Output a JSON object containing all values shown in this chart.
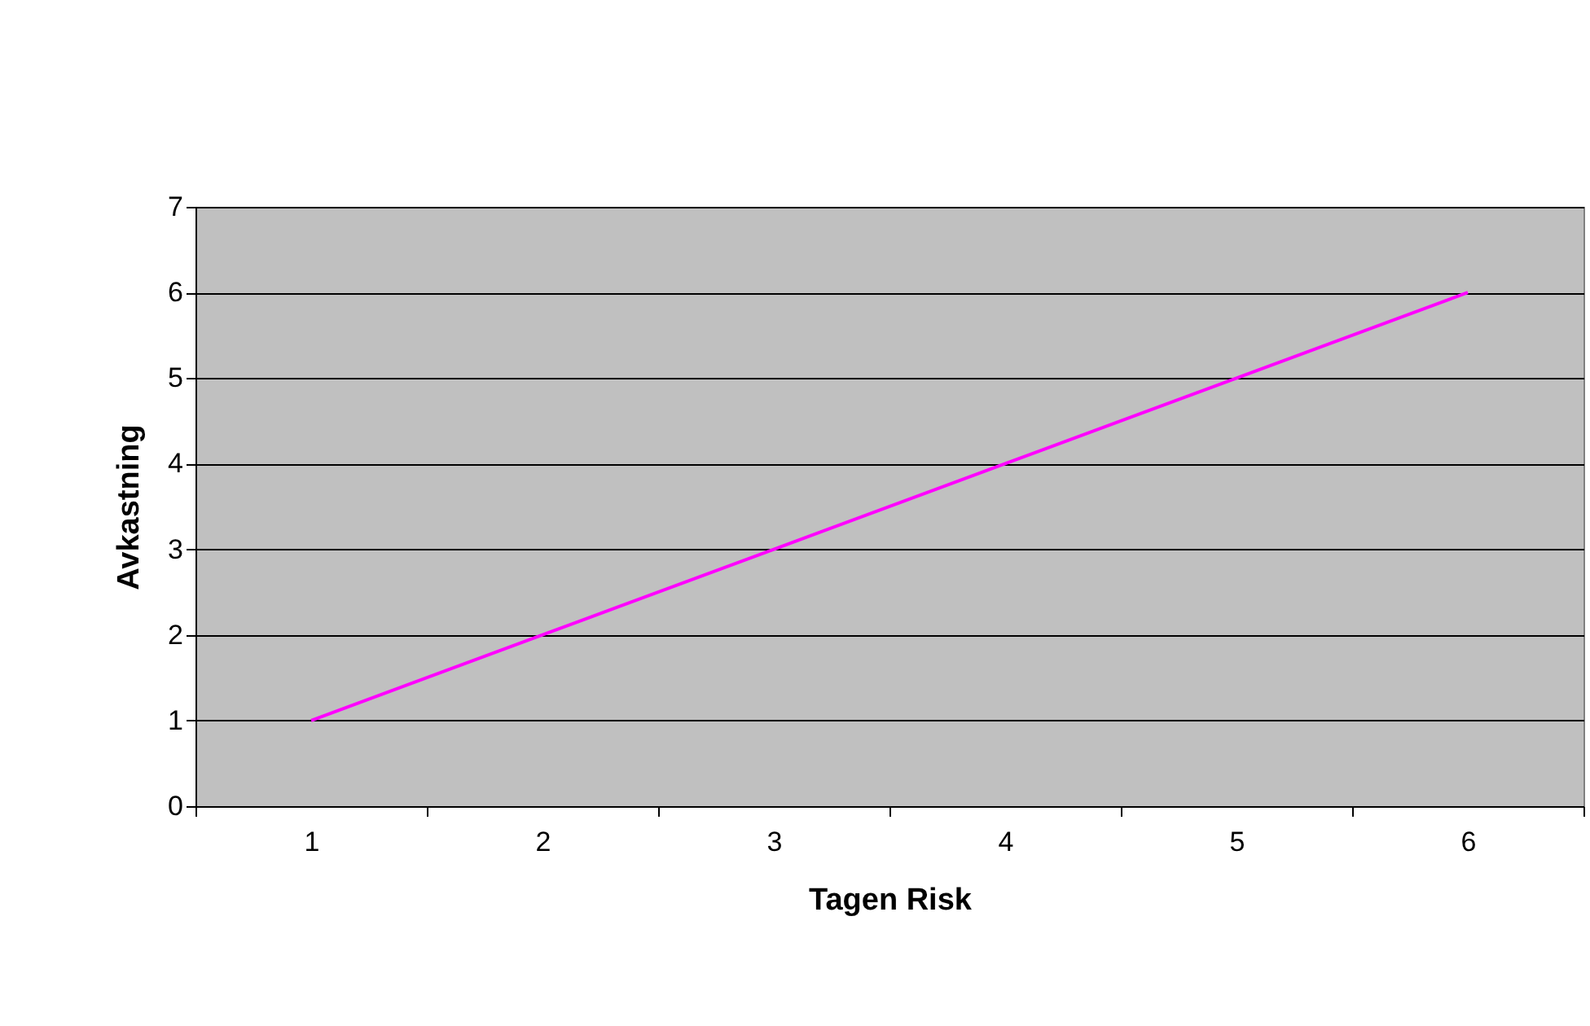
{
  "chart_data": {
    "type": "line",
    "xlabel": "Tagen Risk",
    "ylabel": "Avkastning",
    "categories": [
      "1",
      "2",
      "3",
      "4",
      "5",
      "6"
    ],
    "series": [
      {
        "color": "#ff00ff",
        "values": [
          1,
          2,
          3,
          4,
          5,
          6
        ]
      }
    ],
    "ylim": [
      0,
      7
    ],
    "yticks": [
      0,
      1,
      2,
      3,
      4,
      5,
      6,
      7
    ],
    "grid": "y",
    "legend": false,
    "marker": "none",
    "line_style": "solid"
  }
}
